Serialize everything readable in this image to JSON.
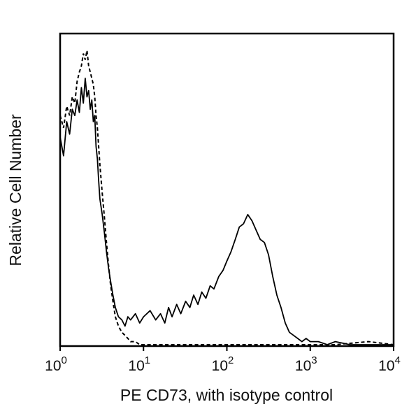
{
  "chart_data": {
    "type": "line",
    "xlabel": "PE CD73, with isotype control",
    "ylabel": "Relative Cell Number",
    "x_scale": "log",
    "xlim": [
      1,
      10000
    ],
    "ylim": [
      0,
      1
    ],
    "x_ticks": [
      {
        "value": 1,
        "base": "10",
        "exp": "0"
      },
      {
        "value": 10,
        "base": "10",
        "exp": "1"
      },
      {
        "value": 100,
        "base": "10",
        "exp": "2"
      },
      {
        "value": 1000,
        "base": "10",
        "exp": "3"
      },
      {
        "value": 10000,
        "base": "10",
        "exp": "4"
      }
    ],
    "y_ticks": [],
    "grid": false,
    "legend": "none",
    "series": [
      {
        "style": "solid",
        "x": [
          1.0,
          1.1,
          1.2,
          1.3,
          1.4,
          1.5,
          1.6,
          1.7,
          1.8,
          1.9,
          2.0,
          2.1,
          2.2,
          2.3,
          2.4,
          2.5,
          2.6,
          2.7,
          2.8,
          2.9,
          3.0,
          3.2,
          3.4,
          3.6,
          3.8,
          4.0,
          4.3,
          4.6,
          5.0,
          5.5,
          6.0,
          6.5,
          7.0,
          8.0,
          9.0,
          10.0,
          12.0,
          14.0,
          16.0,
          18.0,
          20.0,
          22.0,
          25.0,
          28.0,
          32.0,
          36.0,
          40.0,
          45.0,
          50.0,
          56.0,
          63.0,
          70.0,
          80.0,
          90.0,
          100.0,
          112.0,
          126.0,
          141.0,
          158.0,
          178.0,
          200.0,
          224.0,
          251.0,
          282.0,
          316.0,
          355.0,
          398.0,
          446.0,
          501.0,
          562.0,
          631.0,
          708.0,
          794.0,
          891.0,
          1000.0,
          1250.0,
          1600.0,
          2000.0,
          3000.0,
          5000.0,
          10000.0
        ],
        "y": [
          0.67,
          0.61,
          0.72,
          0.68,
          0.76,
          0.74,
          0.79,
          0.75,
          0.83,
          0.78,
          0.86,
          0.8,
          0.82,
          0.76,
          0.79,
          0.72,
          0.74,
          0.64,
          0.6,
          0.53,
          0.47,
          0.42,
          0.36,
          0.3,
          0.25,
          0.21,
          0.16,
          0.12,
          0.09,
          0.08,
          0.06,
          0.09,
          0.08,
          0.1,
          0.07,
          0.09,
          0.11,
          0.08,
          0.1,
          0.07,
          0.12,
          0.09,
          0.13,
          0.1,
          0.14,
          0.12,
          0.16,
          0.13,
          0.17,
          0.15,
          0.19,
          0.18,
          0.22,
          0.24,
          0.27,
          0.3,
          0.34,
          0.38,
          0.39,
          0.42,
          0.4,
          0.37,
          0.34,
          0.33,
          0.29,
          0.22,
          0.16,
          0.12,
          0.07,
          0.04,
          0.03,
          0.02,
          0.01,
          0.02,
          0.01,
          0.01,
          0.0,
          0.01,
          0.0,
          0.0,
          0.0
        ]
      },
      {
        "style": "dashed",
        "x": [
          1.0,
          1.1,
          1.2,
          1.3,
          1.4,
          1.5,
          1.6,
          1.7,
          1.8,
          1.9,
          2.0,
          2.1,
          2.2,
          2.3,
          2.4,
          2.5,
          2.6,
          2.7,
          2.8,
          2.9,
          3.0,
          3.2,
          3.4,
          3.6,
          3.8,
          4.0,
          4.3,
          4.6,
          5.0,
          5.5,
          6.0,
          6.5,
          7.0,
          8.0,
          9.0,
          10.0,
          14.0,
          20.0,
          30.0,
          50.0,
          100.0,
          200.0,
          500.0,
          1000.0,
          2000.0,
          5000.0,
          10000.0
        ],
        "y": [
          0.74,
          0.7,
          0.77,
          0.74,
          0.8,
          0.78,
          0.85,
          0.88,
          0.9,
          0.94,
          0.92,
          0.95,
          0.9,
          0.88,
          0.86,
          0.84,
          0.8,
          0.74,
          0.7,
          0.64,
          0.58,
          0.49,
          0.41,
          0.33,
          0.26,
          0.2,
          0.14,
          0.09,
          0.06,
          0.04,
          0.03,
          0.02,
          0.01,
          0.01,
          0.0,
          0.0,
          0.0,
          0.0,
          0.0,
          0.0,
          0.0,
          0.0,
          0.0,
          0.0,
          0.0,
          0.01,
          0.0
        ]
      }
    ]
  }
}
